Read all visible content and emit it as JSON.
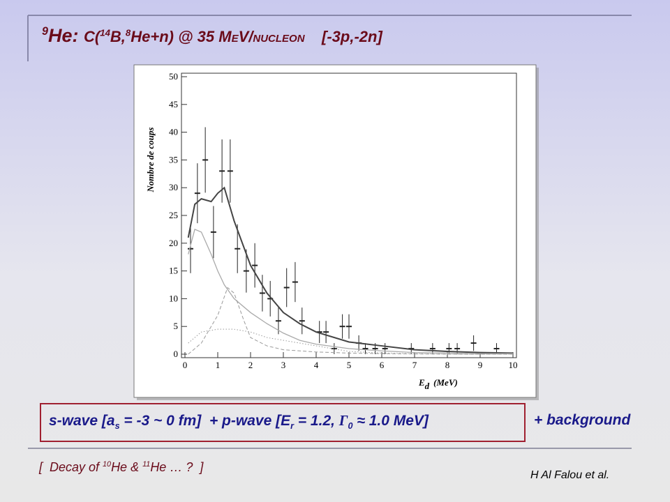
{
  "slide": {
    "title": [
      "9",
      "He: ",
      "C(",
      "14",
      "B,",
      "8",
      "He+n) @ 35 ",
      "MeV/nucleon",
      "[-3p,-2n]"
    ],
    "box": [
      "s-wave [a",
      "s",
      " = -3 ~ 0 fm]  + p-wave [E",
      "r",
      " = 1.2, ",
      "Γ",
      "0",
      " ≈ 1.0 MeV]"
    ],
    "background_note": "+ background",
    "footer": [
      "[  Decay of ",
      "10",
      "He & ",
      "11",
      "He … ?  ]"
    ],
    "author": "H Al Falou et al."
  },
  "chart_data": {
    "type": "line",
    "ylabel": "Nombre de coups",
    "xlabel": "E",
    "xlabel_sub": "d",
    "xlabel_unit": "(MeV)",
    "xlim": [
      0,
      10
    ],
    "xticks": [
      0,
      1,
      2,
      3,
      4,
      5,
      6,
      7,
      8,
      9,
      10
    ],
    "ylim": [
      0,
      50
    ],
    "yticks": [
      0,
      5,
      10,
      15,
      20,
      25,
      30,
      35,
      40,
      45,
      50
    ],
    "series": [
      {
        "kind": "points",
        "color": "#222222",
        "x": [
          0.17,
          0.38,
          0.62,
          0.87,
          1.13,
          1.38,
          1.6,
          1.87,
          2.13,
          2.36,
          2.6,
          2.85,
          3.1,
          3.36,
          3.57,
          4.1,
          4.3,
          4.55,
          4.8,
          5.0,
          5.3,
          5.5,
          5.8,
          6.1,
          6.9,
          7.55,
          8.05,
          8.3,
          8.8,
          9.5
        ],
        "values": [
          19,
          29,
          35,
          22,
          33,
          33,
          19,
          15,
          16,
          11,
          10,
          6,
          12,
          13,
          6,
          4,
          4,
          1,
          5,
          5,
          2,
          1,
          1,
          1,
          1,
          1,
          1,
          1,
          2,
          1
        ],
        "errors": [
          4.4,
          5.4,
          5.9,
          4.7,
          5.7,
          5.7,
          4.4,
          3.9,
          4,
          3.3,
          3.2,
          2.4,
          3.5,
          3.6,
          2.4,
          2,
          2,
          1,
          2.2,
          2.2,
          1.4,
          1,
          1,
          1,
          1,
          1,
          1,
          1,
          1.4,
          1
        ]
      },
      {
        "kind": "solid",
        "color": "#444444",
        "width": 2,
        "x": [
          0.1,
          0.3,
          0.5,
          0.8,
          1.0,
          1.2,
          1.5,
          2,
          2.5,
          3,
          3.5,
          4,
          5,
          6,
          7,
          8,
          9,
          10
        ],
        "values": [
          21,
          27,
          28,
          27.5,
          29,
          30,
          24,
          16,
          11,
          7.5,
          5.5,
          4,
          2.2,
          1.5,
          0.8,
          0.5,
          0.3,
          0.2
        ]
      },
      {
        "kind": "solid",
        "color": "#aaaaaa",
        "width": 1.3,
        "x": [
          0.1,
          0.3,
          0.5,
          0.8,
          1.0,
          1.2,
          1.5,
          2,
          2.5,
          3,
          3.5,
          4,
          5,
          6,
          7,
          8,
          9,
          10
        ],
        "values": [
          18,
          22.5,
          22,
          18,
          15,
          12.5,
          10,
          7.5,
          5.5,
          3.8,
          2.5,
          1.8,
          1,
          0.6,
          0.3,
          0.2,
          0.1,
          0.1
        ]
      },
      {
        "kind": "dashed",
        "color": "#999999",
        "width": 1,
        "x": [
          0.1,
          0.5,
          1,
          1.3,
          1.5,
          1.8,
          2,
          2.5,
          3,
          4,
          5,
          6,
          8,
          10
        ],
        "values": [
          0,
          2,
          7,
          12,
          11,
          6,
          3,
          1.5,
          0.8,
          0.4,
          0.2,
          0.1,
          0,
          0
        ]
      },
      {
        "kind": "dotted",
        "color": "#999999",
        "width": 1,
        "x": [
          0.1,
          0.5,
          1,
          1.5,
          2,
          2.5,
          3,
          4,
          5,
          6,
          8,
          10
        ],
        "values": [
          2,
          4,
          4.5,
          4.5,
          4,
          3,
          2.5,
          1.5,
          0.5,
          0.2,
          0,
          0
        ]
      }
    ]
  }
}
